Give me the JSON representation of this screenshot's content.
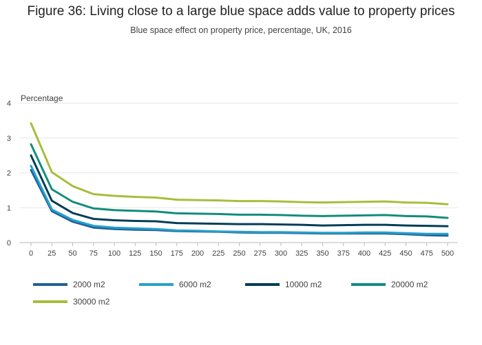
{
  "colors": {
    "s2000": "#206095",
    "s6000": "#27a0cc",
    "s10000": "#003c57",
    "s20000": "#118c7b",
    "s30000": "#a8bd3a",
    "grid": "#e6e6e6",
    "axis": "#bbbbbb",
    "text": "#414042"
  },
  "chart_data": {
    "type": "line",
    "title": "Figure 36: Living close to a large blue space adds value to property prices",
    "subtitle": "Blue space effect on property price, percentage, UK, 2016",
    "xlabel": "",
    "ylabel": "Percentage",
    "xlim": [
      0,
      500
    ],
    "ylim": [
      0,
      4
    ],
    "grid": true,
    "legend_placement": "bottom",
    "x": [
      0,
      25,
      50,
      75,
      100,
      125,
      150,
      175,
      200,
      225,
      250,
      275,
      300,
      325,
      350,
      375,
      400,
      425,
      450,
      475,
      500
    ],
    "x_ticks": [
      "0",
      "25",
      "50",
      "75",
      "100",
      "125",
      "150",
      "175",
      "200",
      "225",
      "250",
      "275",
      "300",
      "325",
      "350",
      "375",
      "400",
      "425",
      "450",
      "475",
      "500"
    ],
    "y_ticks": [
      "0",
      "1",
      "2",
      "3",
      "4"
    ],
    "y_tick_values": [
      0,
      1,
      2,
      3,
      4
    ],
    "series": [
      {
        "name": "2000 m2",
        "color": "#206095",
        "values": [
          2.08,
          0.9,
          0.6,
          0.43,
          0.39,
          0.37,
          0.36,
          0.33,
          0.32,
          0.31,
          0.29,
          0.28,
          0.28,
          0.27,
          0.26,
          0.26,
          0.26,
          0.26,
          0.24,
          0.21,
          0.2
        ]
      },
      {
        "name": "6000 m2",
        "color": "#27a0cc",
        "values": [
          2.2,
          0.95,
          0.65,
          0.48,
          0.43,
          0.41,
          0.39,
          0.35,
          0.34,
          0.32,
          0.31,
          0.3,
          0.3,
          0.29,
          0.28,
          0.28,
          0.29,
          0.29,
          0.27,
          0.25,
          0.25
        ]
      },
      {
        "name": "10000 m2",
        "color": "#003c57",
        "values": [
          2.5,
          1.2,
          0.85,
          0.68,
          0.64,
          0.62,
          0.61,
          0.56,
          0.55,
          0.54,
          0.53,
          0.53,
          0.52,
          0.51,
          0.49,
          0.5,
          0.51,
          0.51,
          0.49,
          0.48,
          0.47
        ]
      },
      {
        "name": "20000 m2",
        "color": "#118c7b",
        "values": [
          2.82,
          1.53,
          1.17,
          0.98,
          0.93,
          0.91,
          0.89,
          0.84,
          0.83,
          0.82,
          0.8,
          0.8,
          0.79,
          0.77,
          0.76,
          0.77,
          0.78,
          0.79,
          0.76,
          0.75,
          0.71
        ]
      },
      {
        "name": "30000 m2",
        "color": "#a8bd3a",
        "values": [
          3.42,
          2.02,
          1.62,
          1.39,
          1.34,
          1.31,
          1.29,
          1.23,
          1.22,
          1.21,
          1.19,
          1.19,
          1.18,
          1.16,
          1.15,
          1.16,
          1.17,
          1.18,
          1.15,
          1.14,
          1.1
        ]
      }
    ]
  }
}
